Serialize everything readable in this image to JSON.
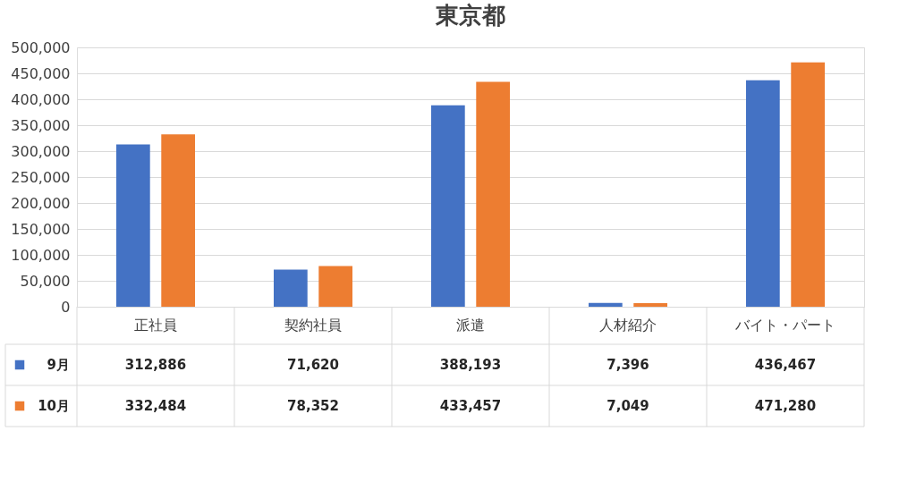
{
  "chart_data": {
    "type": "bar",
    "title": "東京都",
    "categories": [
      "正社員",
      "契約社員",
      "派遣",
      "人材紹介",
      "バイト・パート"
    ],
    "series": [
      {
        "name": "9月",
        "color": "#4472c4",
        "values": [
          312886,
          71620,
          388193,
          7396,
          436467
        ],
        "value_labels": [
          "312,886",
          "71,620",
          "388,193",
          "7,396",
          "436,467"
        ]
      },
      {
        "name": "10月",
        "color": "#ed7d31",
        "values": [
          332484,
          78352,
          433457,
          7049,
          471280
        ],
        "value_labels": [
          "332,484",
          "78,352",
          "433,457",
          "7,049",
          "471,280"
        ]
      }
    ],
    "ylim": [
      0,
      500000
    ],
    "yticks": [
      0,
      {
        "value": 50000,
        "label": "50,000"
      },
      {
        "value": 100000,
        "label": "100,000"
      },
      {
        "value": 150000,
        "label": "150,000"
      },
      {
        "value": 200000,
        "label": "200,000"
      },
      {
        "value": 250000,
        "label": "250,000"
      },
      {
        "value": 300000,
        "label": "300,000"
      },
      {
        "value": 350000,
        "label": "350,000"
      },
      {
        "value": 400000,
        "label": "400,000"
      },
      {
        "value": 450000,
        "label": "450,000"
      },
      {
        "value": 500000,
        "label": "500,000"
      }
    ],
    "grid": "y",
    "legend": "bottom"
  }
}
